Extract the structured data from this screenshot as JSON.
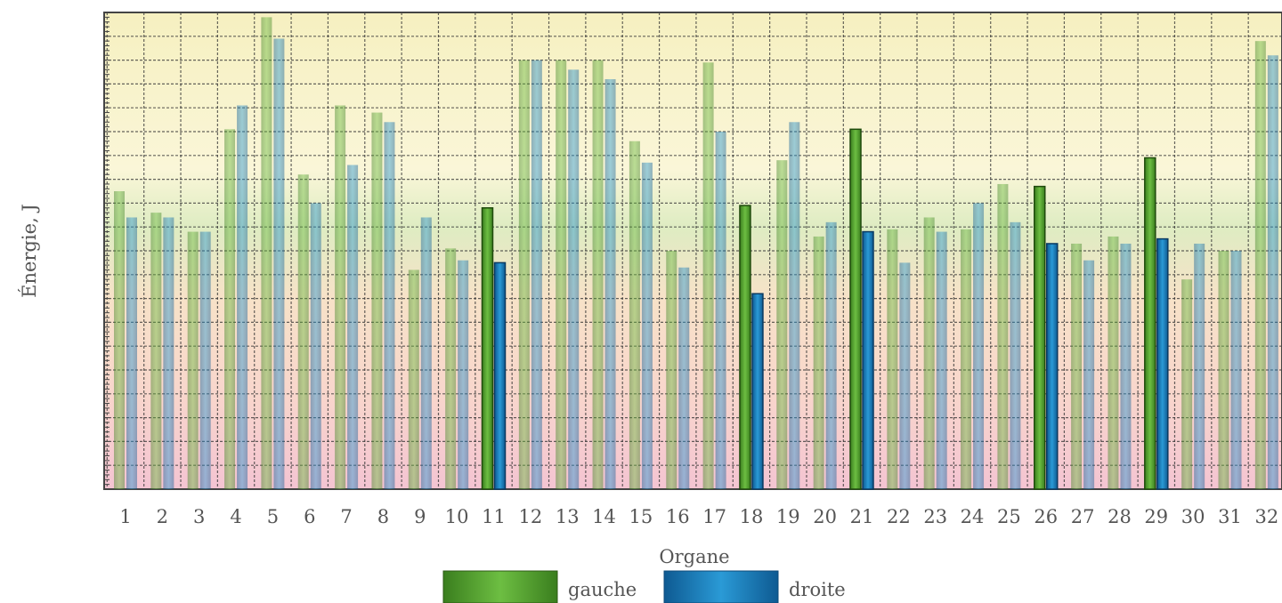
{
  "chart_data": {
    "type": "bar",
    "xlabel": "Organe",
    "ylabel": "Énergie, J",
    "categories": [
      "1",
      "2",
      "3",
      "4",
      "5",
      "6",
      "7",
      "8",
      "9",
      "10",
      "11",
      "12",
      "13",
      "14",
      "15",
      "16",
      "17",
      "18",
      "19",
      "20",
      "21",
      "22",
      "23",
      "24",
      "25",
      "26",
      "27",
      "28",
      "29",
      "30",
      "31",
      "32"
    ],
    "ylim": [
      0,
      100
    ],
    "grid": true,
    "legend_position": "bottom",
    "highlighted_categories": [
      "11",
      "18",
      "21",
      "26",
      "29"
    ],
    "series": [
      {
        "name": "gauche",
        "color": "#4a9a2a",
        "values": [
          62.5,
          58,
          54,
          75.5,
          99,
          66,
          80.5,
          79,
          46,
          50.5,
          59,
          90,
          90,
          90,
          73,
          50,
          89.5,
          59.5,
          69,
          53,
          75.5,
          54.5,
          57,
          54.5,
          64,
          63.5,
          51.5,
          53,
          69.5,
          44,
          50,
          94
        ]
      },
      {
        "name": "droite",
        "color": "#1a7ab8",
        "values": [
          57,
          57,
          54,
          80.5,
          94.5,
          60,
          68,
          77,
          57,
          48,
          47.5,
          90,
          88,
          86,
          68.5,
          46.5,
          75,
          41,
          77,
          56,
          54,
          47.5,
          54,
          60,
          56,
          51.5,
          48,
          51.5,
          52.5,
          51.5,
          50,
          91
        ]
      }
    ]
  }
}
